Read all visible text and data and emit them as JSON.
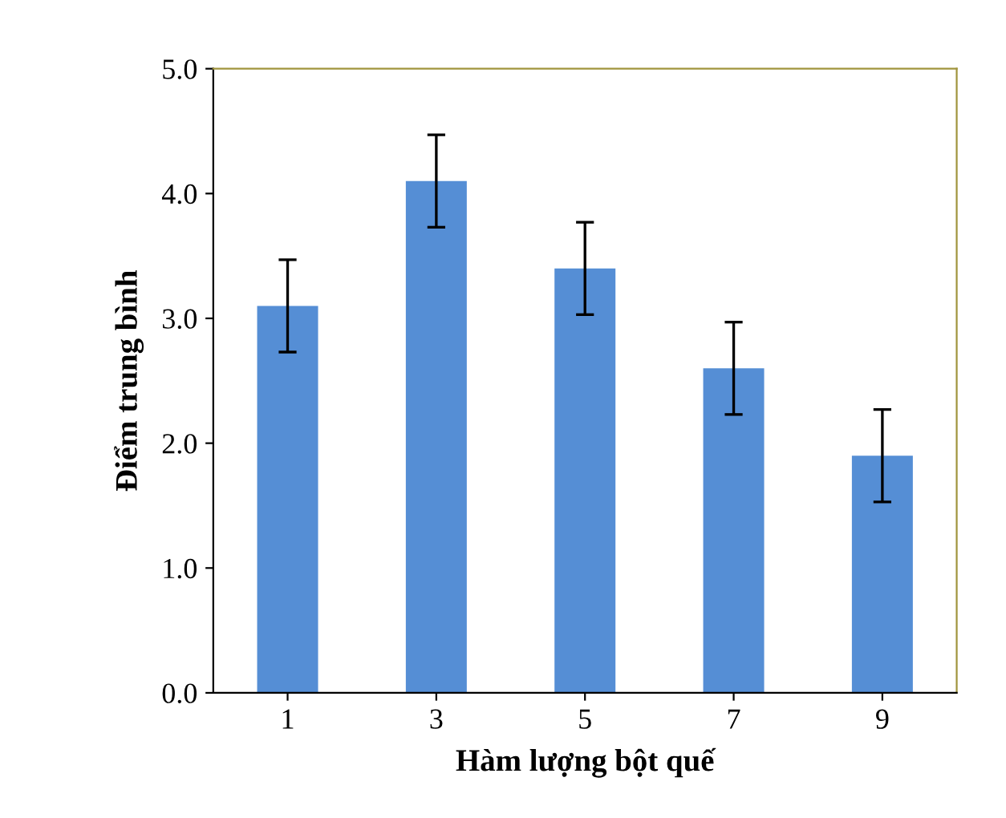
{
  "chart_data": {
    "type": "bar",
    "xlabel": "Hàm lượng bột quế",
    "ylabel": "Điểm trung bình",
    "categories": [
      "1",
      "3",
      "5",
      "7",
      "9"
    ],
    "values": [
      3.1,
      4.1,
      3.4,
      2.6,
      1.9
    ],
    "errors": [
      0.37,
      0.37,
      0.37,
      0.37,
      0.37
    ],
    "color": "#558ed5",
    "ylim": [
      0,
      5
    ],
    "yticks": [
      {
        "value": 0,
        "label": "0.0"
      },
      {
        "value": 1,
        "label": "1.0"
      },
      {
        "value": 2,
        "label": "2.0"
      },
      {
        "value": 3,
        "label": "3.0"
      },
      {
        "value": 4,
        "label": "4.0"
      },
      {
        "value": 5,
        "label": "5.0"
      }
    ],
    "grid": false,
    "legend": false
  }
}
